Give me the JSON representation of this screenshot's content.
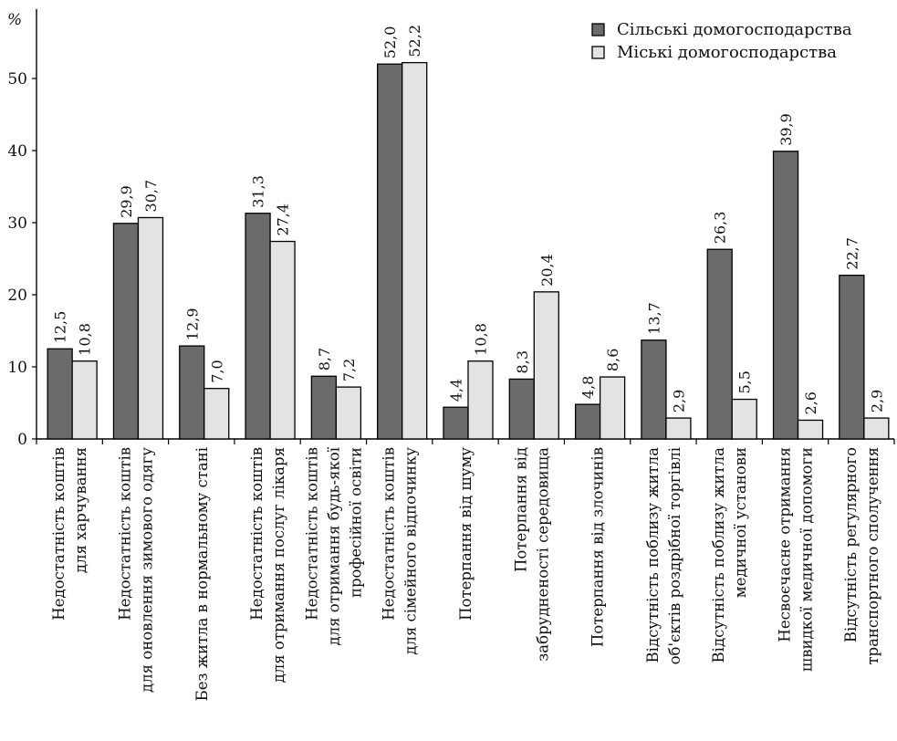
{
  "chart_data": {
    "type": "bar",
    "ylabel": "%",
    "ylim": [
      0,
      58
    ],
    "yticks": [
      0,
      10,
      20,
      30,
      40,
      50
    ],
    "grid": false,
    "legend_position": "top-right",
    "categories": [
      [
        "Недостатність коштів",
        "для харчування"
      ],
      [
        "Недостатність коштів",
        "для оновлення зимового одягу"
      ],
      [
        "Без житла в нормальному стані"
      ],
      [
        "Недостатність коштів",
        "для отримання послуг лікаря"
      ],
      [
        "Недостатність коштів",
        "для отримання будь-якої",
        "професійної освіти"
      ],
      [
        "Недостатність коштів",
        "для сімейного відпочинку"
      ],
      [
        "Потерпання від шуму"
      ],
      [
        "Потерпання від",
        "забрудненості середовища"
      ],
      [
        "Потерпання від злочинів"
      ],
      [
        "Відсутність поблизу житла",
        "об'єктів роздрібної торгівлі"
      ],
      [
        "Відсутність поблизу житла",
        "медичної установи"
      ],
      [
        "Несвоєчасне отримання",
        "швидкої медичної допомоги"
      ],
      [
        "Відсутність регулярного",
        "транспортного сполучення"
      ]
    ],
    "series": [
      {
        "name": "Сільські домогосподарства",
        "color": "#6b6b6b",
        "values": [
          12.5,
          29.9,
          12.9,
          31.3,
          8.7,
          52.0,
          4.4,
          8.3,
          4.8,
          13.7,
          26.3,
          39.9,
          22.7
        ],
        "labels": [
          "12,5",
          "29,9",
          "12,9",
          "31,3",
          "8,7",
          "52,0",
          "4,4",
          "8,3",
          "4,8",
          "13,7",
          "26,3",
          "39,9",
          "22,7"
        ]
      },
      {
        "name": "Міські домогосподарства",
        "color": "#e3e3e3",
        "values": [
          10.8,
          30.7,
          7.0,
          27.4,
          7.2,
          52.2,
          10.8,
          20.4,
          8.6,
          2.9,
          5.5,
          2.6,
          2.9
        ],
        "labels": [
          "10,8",
          "30,7",
          "7,0",
          "27,4",
          "7,2",
          "52,2",
          "10,8",
          "20,4",
          "8,6",
          "2,9",
          "5,5",
          "2,6",
          "2,9"
        ]
      }
    ]
  }
}
